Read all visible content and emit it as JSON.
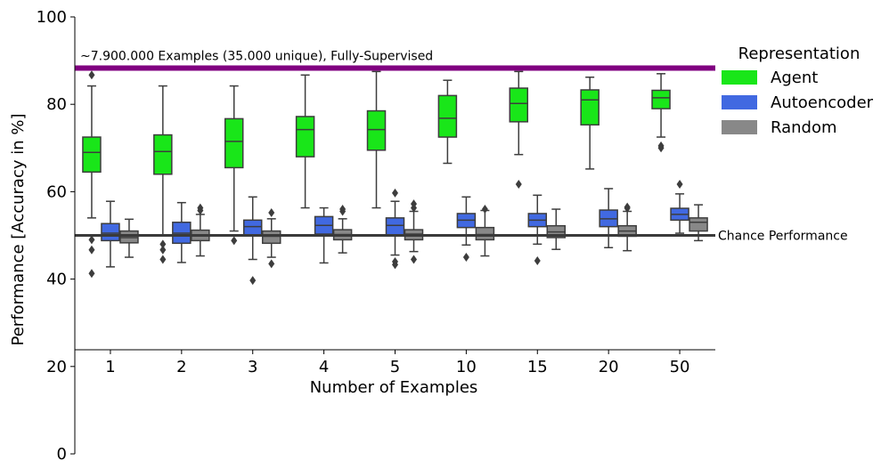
{
  "chart_data": {
    "type": "box",
    "xlabel": "Number of Examples",
    "ylabel": "Performance [Accuracy in %]",
    "ylim": [
      0,
      100
    ],
    "yticks": [
      0,
      20,
      40,
      60,
      80,
      100
    ],
    "categories": [
      "1",
      "2",
      "3",
      "4",
      "5",
      "10",
      "15",
      "20",
      "50"
    ],
    "legend": {
      "title": "Representation",
      "position": "right"
    },
    "reference_lines": [
      {
        "name": "supervised",
        "label": "~7.900.000 Examples (35.000 unique), Fully-Supervised",
        "y": 88.3,
        "color": "#800080"
      },
      {
        "name": "chance",
        "label": "Chance Performance",
        "y": 50,
        "color": "#3a3a3a"
      }
    ],
    "series": [
      {
        "name": "Agent",
        "color": "#19e619",
        "boxes": [
          {
            "whisker_low": 54,
            "q1": 64.5,
            "median": 69,
            "q3": 72.5,
            "whisker_high": 84.2,
            "outliers": [
              86.7,
              41.3,
              46.7,
              49
            ]
          },
          {
            "whisker_low": 50,
            "q1": 64,
            "median": 69.2,
            "q3": 73,
            "whisker_high": 84.2,
            "outliers": [
              48,
              46.7,
              44.5
            ]
          },
          {
            "whisker_low": 51,
            "q1": 65.5,
            "median": 71.5,
            "q3": 76.7,
            "whisker_high": 84.2,
            "outliers": [
              48.8
            ]
          },
          {
            "whisker_low": 56.3,
            "q1": 68,
            "median": 74.2,
            "q3": 77.2,
            "whisker_high": 86.7,
            "outliers": []
          },
          {
            "whisker_low": 56.3,
            "q1": 69.5,
            "median": 74.2,
            "q3": 78.5,
            "whisker_high": 87.5,
            "outliers": []
          },
          {
            "whisker_low": 66.5,
            "q1": 72.5,
            "median": 76.8,
            "q3": 82,
            "whisker_high": 85.5,
            "outliers": []
          },
          {
            "whisker_low": 68.5,
            "q1": 76,
            "median": 80.2,
            "q3": 83.7,
            "whisker_high": 87.5,
            "outliers": [
              61.7
            ]
          },
          {
            "whisker_low": 65.2,
            "q1": 75.3,
            "median": 81,
            "q3": 83.3,
            "whisker_high": 86.2,
            "outliers": []
          },
          {
            "whisker_low": 72.5,
            "q1": 79,
            "median": 81.5,
            "q3": 83.2,
            "whisker_high": 87,
            "outliers": [
              70.5,
              70
            ]
          }
        ]
      },
      {
        "name": "Autoencoder",
        "color": "#4169e1",
        "boxes": [
          {
            "whisker_low": 42.8,
            "q1": 48.8,
            "median": 50.5,
            "q3": 52.7,
            "whisker_high": 57.8,
            "outliers": []
          },
          {
            "whisker_low": 43.8,
            "q1": 48.2,
            "median": 50.5,
            "q3": 53,
            "whisker_high": 57.5,
            "outliers": []
          },
          {
            "whisker_low": 44.5,
            "q1": 50,
            "median": 52,
            "q3": 53.5,
            "whisker_high": 58.8,
            "outliers": [
              39.7
            ]
          },
          {
            "whisker_low": 43.7,
            "q1": 50.3,
            "median": 52.3,
            "q3": 54.3,
            "whisker_high": 56.3,
            "outliers": []
          },
          {
            "whisker_low": 45.5,
            "q1": 50,
            "median": 52.3,
            "q3": 54,
            "whisker_high": 57.8,
            "outliers": [
              59.7,
              44,
              43.3
            ]
          },
          {
            "whisker_low": 47.8,
            "q1": 51.8,
            "median": 53.5,
            "q3": 55,
            "whisker_high": 58.8,
            "outliers": [
              45
            ]
          },
          {
            "whisker_low": 48,
            "q1": 52,
            "median": 53.5,
            "q3": 55,
            "whisker_high": 59.2,
            "outliers": [
              44.2
            ]
          },
          {
            "whisker_low": 47.2,
            "q1": 52,
            "median": 53.8,
            "q3": 55.8,
            "whisker_high": 60.7,
            "outliers": []
          },
          {
            "whisker_low": 50.5,
            "q1": 53.5,
            "median": 54.8,
            "q3": 56.2,
            "whisker_high": 59.5,
            "outliers": [
              61.7
            ]
          }
        ]
      },
      {
        "name": "Random",
        "color": "#888888",
        "boxes": [
          {
            "whisker_low": 45,
            "q1": 48.3,
            "median": 49.5,
            "q3": 51,
            "whisker_high": 53.7,
            "outliers": []
          },
          {
            "whisker_low": 45.3,
            "q1": 48.8,
            "median": 50,
            "q3": 51.2,
            "whisker_high": 54.8,
            "outliers": [
              56.3,
              55.7
            ]
          },
          {
            "whisker_low": 45,
            "q1": 48.2,
            "median": 49.8,
            "q3": 51,
            "whisker_high": 53.8,
            "outliers": [
              55.2,
              43.5
            ]
          },
          {
            "whisker_low": 46,
            "q1": 49,
            "median": 50.2,
            "q3": 51.3,
            "whisker_high": 53.8,
            "outliers": [
              56,
              55.5
            ]
          },
          {
            "whisker_low": 46.3,
            "q1": 49,
            "median": 50.3,
            "q3": 51.3,
            "whisker_high": 55.5,
            "outliers": [
              57.2,
              56.3,
              44.5
            ]
          },
          {
            "whisker_low": 45.3,
            "q1": 49,
            "median": 50.2,
            "q3": 51.8,
            "whisker_high": 55.7,
            "outliers": [
              56
            ]
          },
          {
            "whisker_low": 46.8,
            "q1": 49.5,
            "median": 50.8,
            "q3": 52.2,
            "whisker_high": 56,
            "outliers": []
          },
          {
            "whisker_low": 46.5,
            "q1": 49.8,
            "median": 51,
            "q3": 52.2,
            "whisker_high": 55.5,
            "outliers": [
              56.5,
              56.2
            ]
          },
          {
            "whisker_low": 48.8,
            "q1": 51,
            "median": 53,
            "q3": 54,
            "whisker_high": 57,
            "outliers": []
          }
        ]
      }
    ]
  }
}
